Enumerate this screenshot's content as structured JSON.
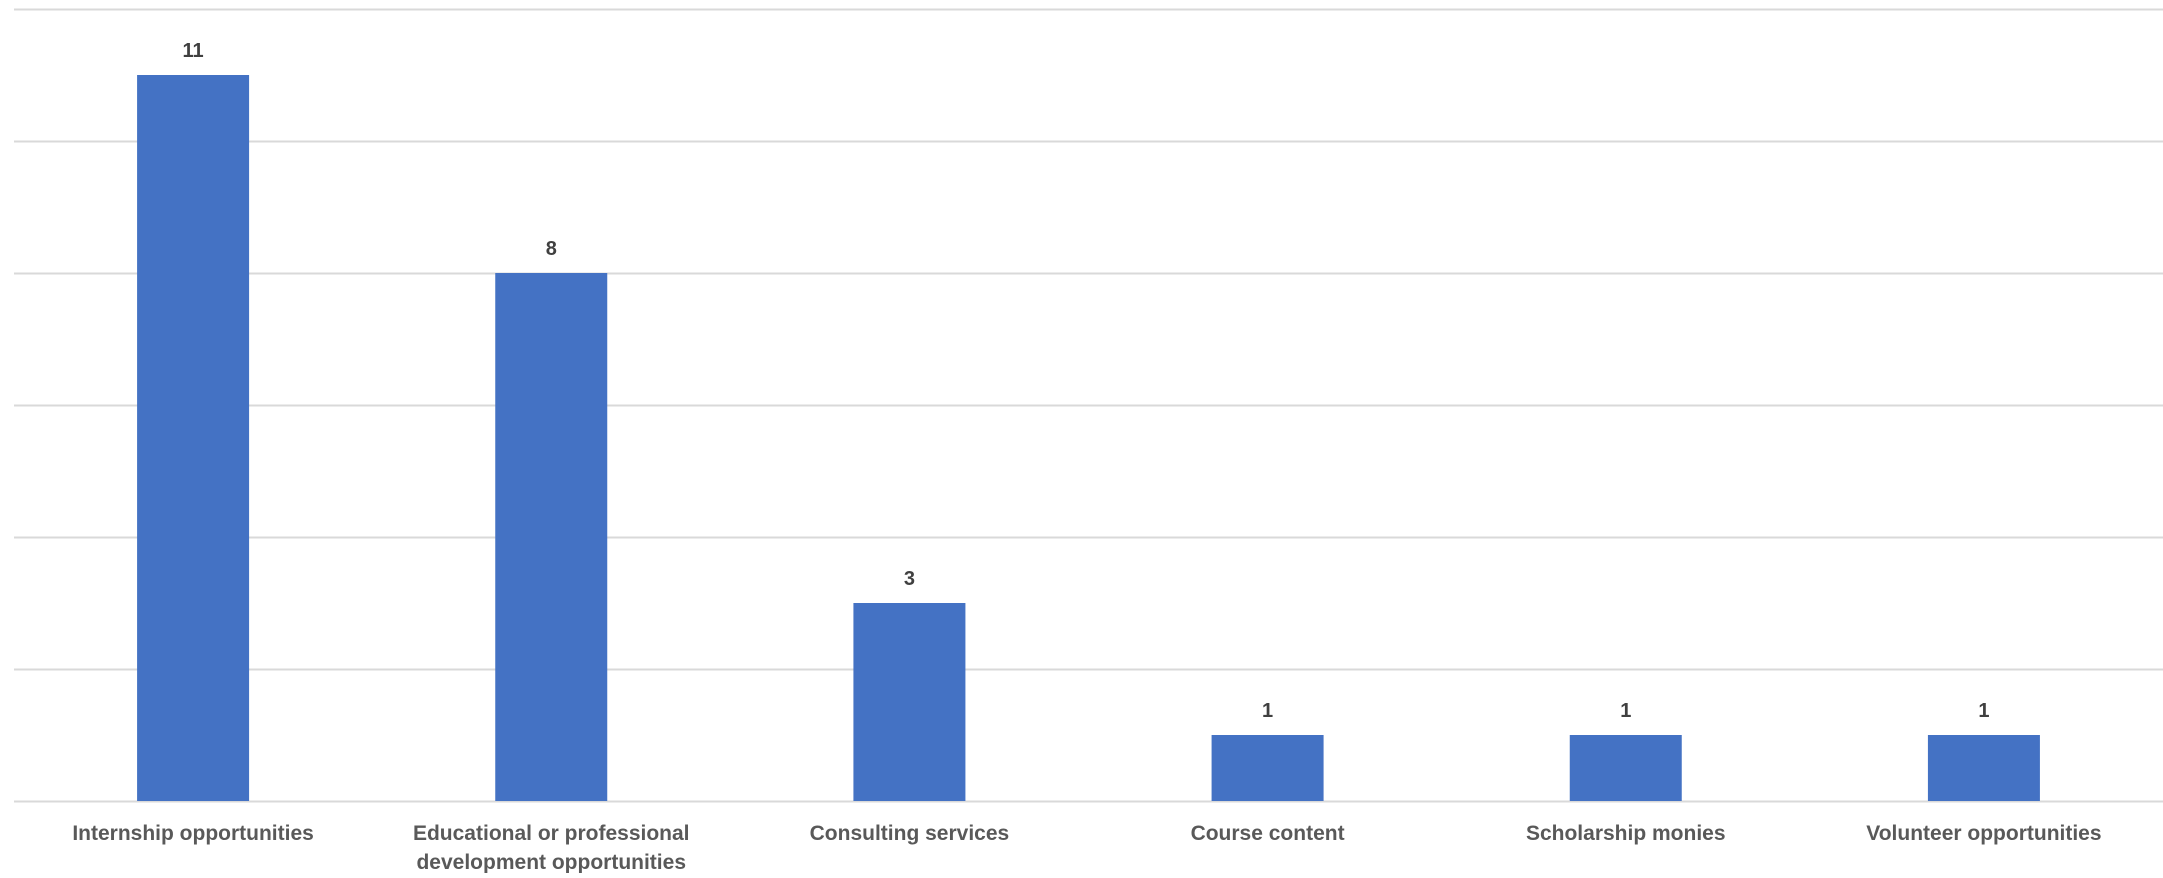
{
  "chart_data": {
    "type": "bar",
    "title": "",
    "xlabel": "",
    "ylabel": "",
    "categories": [
      "Internship opportunities",
      "Educational or professional development opportunities",
      "Consulting services",
      "Course content",
      "Scholarship monies",
      "Volunteer opportunities"
    ],
    "category_label_lines": [
      [
        "Internship opportunities"
      ],
      [
        "Educational or professional",
        "development opportunities"
      ],
      [
        "Consulting services"
      ],
      [
        "Course content"
      ],
      [
        "Scholarship monies"
      ],
      [
        "Volunteer opportunities"
      ]
    ],
    "values": [
      11,
      8,
      3,
      1,
      1,
      1
    ],
    "ylim": [
      0,
      12
    ],
    "gridlines": [
      0,
      2,
      4,
      6,
      8,
      10,
      12
    ],
    "grid": true,
    "legend": "none",
    "data_labels": true,
    "y_tick_labels": false
  },
  "colors": {
    "bar": "#4472c4",
    "grid": "#d9d9d9",
    "data_label": "#404040",
    "category_label": "#595959"
  }
}
